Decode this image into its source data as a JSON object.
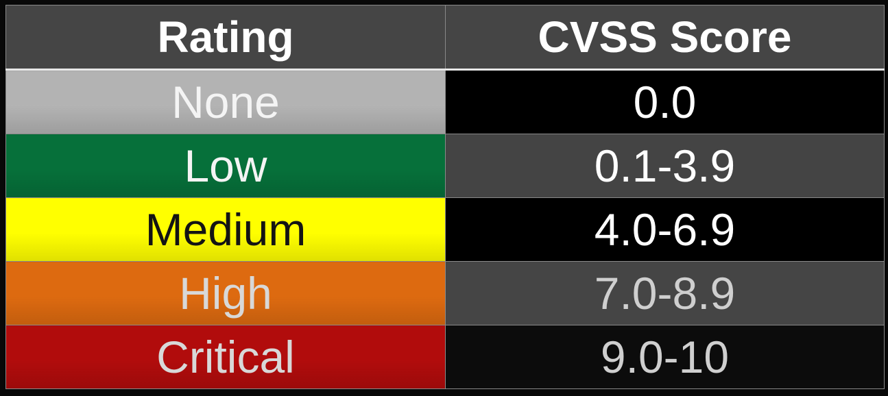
{
  "table": {
    "headers": {
      "rating": "Rating",
      "score": "CVSS Score"
    },
    "rows": [
      {
        "rating": "None",
        "score": "0.0",
        "rating_bg": "#b3b3b3",
        "score_bg": "#000000"
      },
      {
        "rating": "Low",
        "score": "0.1-3.9",
        "rating_bg": "#06703a",
        "score_bg": "#444444"
      },
      {
        "rating": "Medium",
        "score": "4.0-6.9",
        "rating_bg": "#ffff00",
        "score_bg": "#000000"
      },
      {
        "rating": "High",
        "score": "7.0-8.9",
        "rating_bg": "#dd6a10",
        "score_bg": "#454545"
      },
      {
        "rating": "Critical",
        "score": "9.0-10",
        "rating_bg": "#b10c0c",
        "score_bg": "#0c0c0c"
      }
    ]
  }
}
